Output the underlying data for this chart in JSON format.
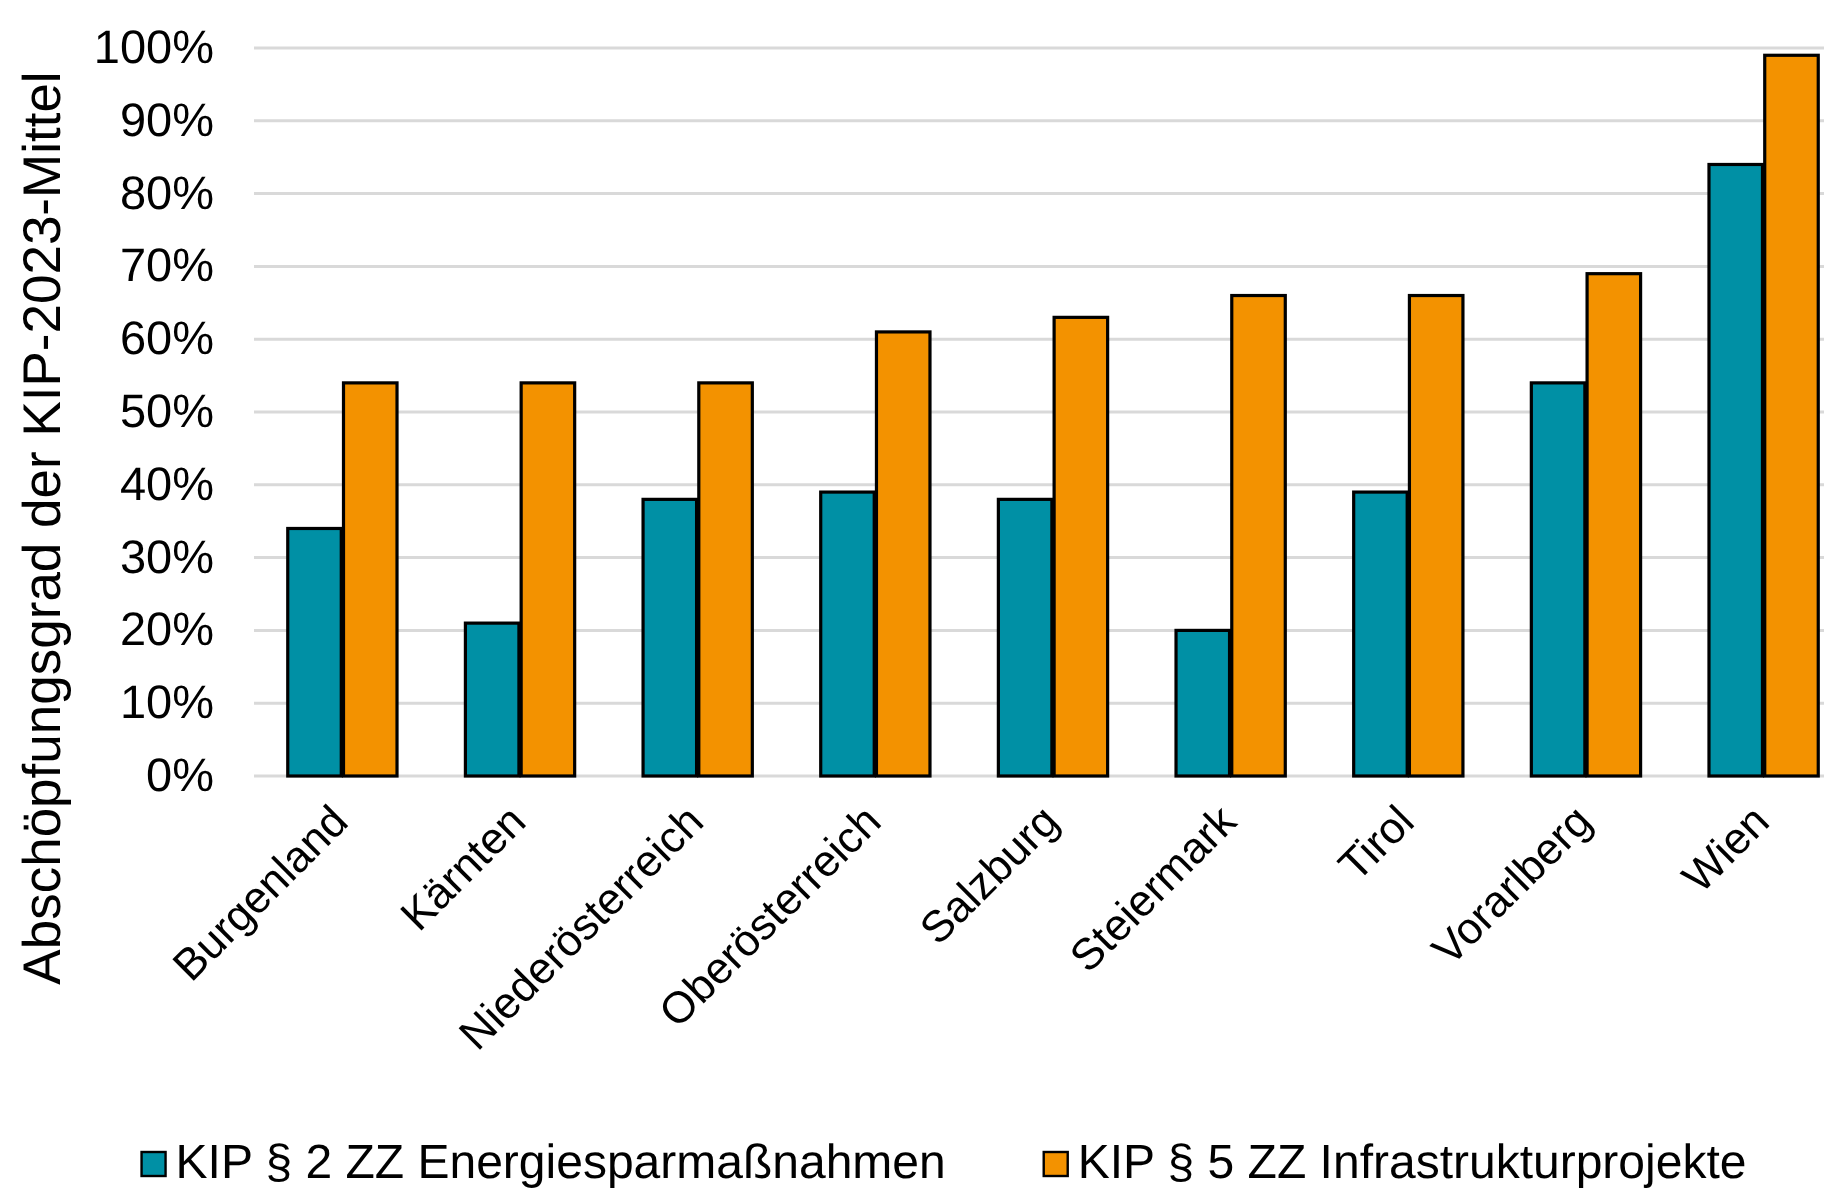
{
  "chart_data": {
    "type": "bar",
    "ylabel": "Abschöpfungsgrad der KIP-2023-Mittel",
    "categories": [
      "Burgenland",
      "Kärnten",
      "Niederösterreich",
      "Oberösterreich",
      "Salzburg",
      "Steiermark",
      "Tirol",
      "Vorarlberg",
      "Wien"
    ],
    "series": [
      {
        "name": "KIP § 2 ZZ Energiesparmaßnahmen",
        "color": "#0090a5",
        "values": [
          34,
          21,
          38,
          39,
          38,
          20,
          39,
          54,
          84
        ]
      },
      {
        "name": "KIP § 5 ZZ Infrastrukturprojekte",
        "color": "#f39200",
        "values": [
          54,
          54,
          54,
          61,
          63,
          66,
          66,
          69,
          99
        ]
      }
    ],
    "ylim": [
      0,
      100
    ],
    "yticks": [
      {
        "value": 0,
        "label": "0%"
      },
      {
        "value": 10,
        "label": "10%"
      },
      {
        "value": 20,
        "label": "20%"
      },
      {
        "value": 30,
        "label": "30%"
      },
      {
        "value": 40,
        "label": "40%"
      },
      {
        "value": 50,
        "label": "50%"
      },
      {
        "value": 60,
        "label": "60%"
      },
      {
        "value": 70,
        "label": "70%"
      },
      {
        "value": 80,
        "label": "80%"
      },
      {
        "value": 90,
        "label": "90%"
      },
      {
        "value": 100,
        "label": "100%"
      }
    ],
    "grid": "y",
    "legend": "bottom"
  }
}
